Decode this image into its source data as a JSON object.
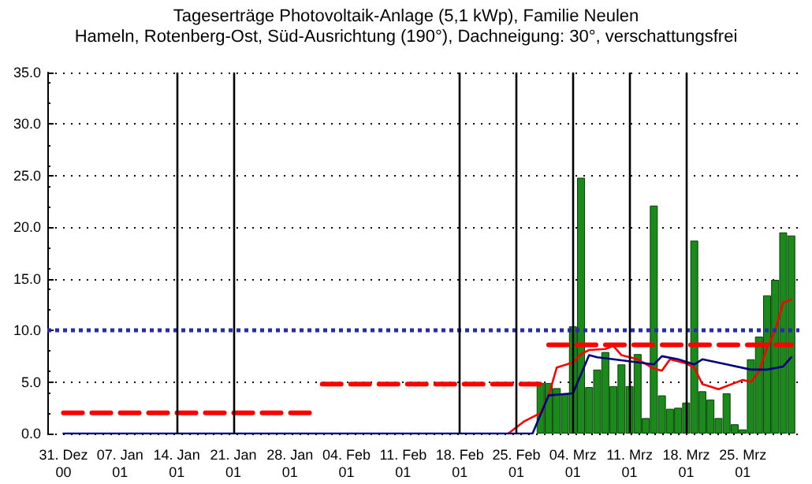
{
  "chart_data": {
    "type": "bar",
    "title": "Tageserträge Photovoltaik-Anlage (5,1 kWp), Familie Neulen",
    "subtitle": "Hameln, Rotenberg-Ost, Süd-Ausrichtung (190°), Dachneigung: 30°, verschattungsfrei",
    "xlim": [
      "2000-12-29",
      "2001-04-01"
    ],
    "xticks": [
      {
        "value": "2000-12-31",
        "label": "31. Dez\n00"
      },
      {
        "value": "2001-01-07",
        "label": "07. Jan\n01"
      },
      {
        "value": "2001-01-14",
        "label": "14. Jan\n01"
      },
      {
        "value": "2001-01-21",
        "label": "21. Jan\n01"
      },
      {
        "value": "2001-01-28",
        "label": "28. Jan\n01"
      },
      {
        "value": "2001-02-04",
        "label": "04. Feb\n01"
      },
      {
        "value": "2001-02-11",
        "label": "11. Feb\n01"
      },
      {
        "value": "2001-02-18",
        "label": "18. Feb\n01"
      },
      {
        "value": "2001-02-25",
        "label": "25. Feb\n01"
      },
      {
        "value": "2001-03-04",
        "label": "04. Mrz\n01"
      },
      {
        "value": "2001-03-11",
        "label": "11. Mrz\n01"
      },
      {
        "value": "2001-03-18",
        "label": "18. Mrz\n01"
      },
      {
        "value": "2001-03-25",
        "label": "25. Mrz\n01"
      }
    ],
    "ylim": [
      0,
      35
    ],
    "yticks": [
      {
        "value": 0,
        "label": "0.0"
      },
      {
        "value": 5,
        "label": "5.0"
      },
      {
        "value": 10,
        "label": "10.0"
      },
      {
        "value": 15,
        "label": "15.0"
      },
      {
        "value": 20,
        "label": "20.0"
      },
      {
        "value": 25,
        "label": "25.0"
      },
      {
        "value": 30,
        "label": "30.0"
      },
      {
        "value": 35,
        "label": "35.0"
      }
    ],
    "grid": "y",
    "series": [
      {
        "color": "#1a8a1a",
        "x": [
          "2001-02-28",
          "2001-03-01",
          "2001-03-02",
          "2001-03-03",
          "2001-03-04",
          "2001-03-05",
          "2001-03-06",
          "2001-03-07",
          "2001-03-08",
          "2001-03-09",
          "2001-03-10",
          "2001-03-11",
          "2001-03-12",
          "2001-03-13",
          "2001-03-14",
          "2001-03-15",
          "2001-03-16",
          "2001-03-17",
          "2001-03-18",
          "2001-03-19",
          "2001-03-20",
          "2001-03-21",
          "2001-03-22",
          "2001-03-23",
          "2001-03-24",
          "2001-03-25",
          "2001-03-26",
          "2001-03-27",
          "2001-03-28",
          "2001-03-29",
          "2001-03-30",
          "2001-03-31"
        ],
        "values": [
          4.9,
          4.9,
          4.4,
          3.9,
          10.4,
          24.8,
          4.5,
          6.2,
          7.9,
          4.6,
          6.7,
          4.6,
          7.7,
          1.5,
          22.1,
          3.7,
          2.4,
          2.5,
          3.0,
          18.7,
          4.1,
          3.3,
          1.5,
          3.9,
          0.9,
          0.4,
          7.2,
          9.4,
          13.4,
          14.9,
          19.5,
          19.2
        ]
      },
      {
        "type": "line",
        "color": "#ff0000",
        "line_style": "solid",
        "x": [
          "2001-02-24",
          "2001-02-26",
          "2001-02-28",
          "2001-03-01",
          "2001-03-02",
          "2001-03-04",
          "2001-03-05",
          "2001-03-06",
          "2001-03-08",
          "2001-03-09",
          "2001-03-10",
          "2001-03-12",
          "2001-03-14",
          "2001-03-15",
          "2001-03-16",
          "2001-03-18",
          "2001-03-19",
          "2001-03-20",
          "2001-03-22",
          "2001-03-24",
          "2001-03-25",
          "2001-03-26",
          "2001-03-27",
          "2001-03-28",
          "2001-03-29",
          "2001-03-30",
          "2001-03-31"
        ],
        "values": [
          0,
          1.2,
          2.0,
          3.7,
          6.4,
          6.9,
          7.7,
          8.1,
          8.2,
          8.5,
          7.6,
          7.2,
          6.3,
          6.1,
          7.2,
          6.8,
          6.4,
          4.8,
          4.3,
          4.9,
          5.2,
          5.0,
          6.0,
          8.3,
          10.0,
          12.7,
          13.0
        ]
      },
      {
        "type": "line",
        "color": "#000080",
        "line_style": "solid",
        "x": [
          "2000-12-31",
          "2001-02-27",
          "2001-03-01",
          "2001-03-04",
          "2001-03-06",
          "2001-03-07",
          "2001-03-09",
          "2001-03-14",
          "2001-03-15",
          "2001-03-17",
          "2001-03-19",
          "2001-03-20",
          "2001-03-23",
          "2001-03-26",
          "2001-03-28",
          "2001-03-30",
          "2001-03-31"
        ],
        "values": [
          0,
          0,
          3.7,
          3.9,
          7.6,
          7.4,
          7.2,
          6.7,
          7.5,
          7.2,
          6.7,
          7.2,
          6.7,
          6.2,
          6.2,
          6.5,
          7.4
        ]
      },
      {
        "type": "line",
        "color": "#ff0000",
        "line_style": "dashed",
        "x": [
          "2000-12-31",
          "2001-01-31"
        ],
        "values": [
          2.0,
          2.0
        ]
      },
      {
        "type": "line",
        "color": "#ff0000",
        "line_style": "dashed",
        "x": [
          "2001-02-01",
          "2001-02-28"
        ],
        "values": [
          4.8,
          4.8
        ]
      },
      {
        "type": "line",
        "color": "#ff0000",
        "line_style": "dashed",
        "x": [
          "2001-03-01",
          "2001-03-31"
        ],
        "values": [
          8.6,
          8.6
        ]
      }
    ],
    "ref_lines": [
      {
        "axis": "y",
        "value": 10.1,
        "color": "#2a2ab0",
        "line_style": "dotted"
      },
      {
        "axis": "x",
        "value": "2001-01-14",
        "color": "#000000",
        "line_style": "solid"
      },
      {
        "axis": "x",
        "value": "2001-01-21",
        "color": "#000000",
        "line_style": "solid"
      },
      {
        "axis": "x",
        "value": "2001-02-18",
        "color": "#000000",
        "line_style": "solid"
      },
      {
        "axis": "x",
        "value": "2001-02-25",
        "color": "#000000",
        "line_style": "solid"
      },
      {
        "axis": "x",
        "value": "2001-03-04",
        "color": "#000000",
        "line_style": "solid"
      },
      {
        "axis": "x",
        "value": "2001-03-11",
        "color": "#000000",
        "line_style": "solid"
      },
      {
        "axis": "x",
        "value": "2001-03-18",
        "color": "#000000",
        "line_style": "solid"
      }
    ]
  }
}
